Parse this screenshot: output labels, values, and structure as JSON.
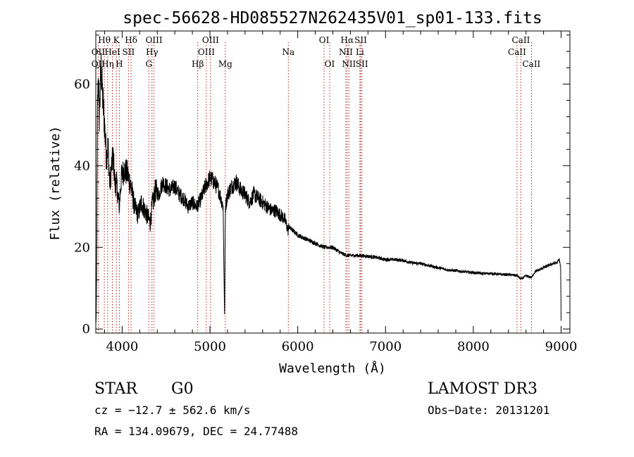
{
  "chart_data": {
    "type": "line",
    "title": "spec-56628-HD085527N262435V01_sp01-133.fits",
    "xlabel": "Wavelength (Å)",
    "ylabel": "Flux (relative)",
    "xlim": [
      3700,
      9100
    ],
    "ylim": [
      -1,
      73
    ],
    "x_ticks": [
      4000,
      5000,
      6000,
      7000,
      8000,
      9000
    ],
    "y_ticks": [
      0,
      20,
      40,
      60
    ],
    "spectrum_anchor_points": {
      "x": [
        3700,
        3705,
        3712,
        3720,
        3730,
        3740,
        3760,
        3780,
        3800,
        3820,
        3840,
        3860,
        3880,
        3900,
        3920,
        3935,
        3950,
        3968,
        3990,
        4020,
        4060,
        4100,
        4140,
        4180,
        4220,
        4260,
        4300,
        4320,
        4340,
        4380,
        4420,
        4460,
        4500,
        4550,
        4600,
        4650,
        4700,
        4750,
        4800,
        4850,
        4900,
        4950,
        5000,
        5050,
        5100,
        5150,
        5167,
        5172,
        5178,
        5200,
        5250,
        5300,
        5350,
        5400,
        5450,
        5500,
        5550,
        5600,
        5650,
        5700,
        5750,
        5800,
        5850,
        5893,
        5900,
        5950,
        6000,
        6100,
        6200,
        6300,
        6400,
        6500,
        6563,
        6600,
        6700,
        6800,
        6900,
        7000,
        7100,
        7200,
        7300,
        7400,
        7500,
        7600,
        7700,
        7800,
        7900,
        8000,
        8100,
        8200,
        8300,
        8400,
        8500,
        8542,
        8600,
        8662,
        8700,
        8800,
        8850,
        8900,
        8950,
        8980,
        8995,
        9000
      ],
      "y": [
        1,
        3,
        25,
        55,
        62,
        52,
        64,
        56,
        50,
        42,
        45,
        35,
        40,
        42,
        35,
        36,
        33,
        30,
        37,
        39,
        38,
        35,
        30,
        28,
        31,
        29,
        27,
        26,
        30,
        34,
        33,
        36,
        35,
        34,
        35,
        33,
        32,
        30,
        31,
        30,
        32,
        35,
        37,
        36,
        34,
        30,
        2,
        22,
        30,
        33,
        35,
        36,
        34,
        33,
        31,
        33,
        32,
        31,
        30,
        29,
        29,
        28,
        27,
        24,
        25,
        24,
        23,
        22,
        21,
        20,
        20,
        18.5,
        18,
        18,
        18,
        17.8,
        17.5,
        17,
        17,
        16.8,
        16.2,
        16,
        15.5,
        15,
        14.5,
        14.3,
        14,
        13.8,
        13.6,
        13.6,
        13.4,
        13.3,
        13.1,
        12.2,
        13,
        12.6,
        14,
        15,
        15.5,
        16,
        16.2,
        17,
        15,
        2
      ]
    },
    "line_markers": [
      {
        "label": "Hθ",
        "wavelength": 3797,
        "row": 0
      },
      {
        "label": "K",
        "wavelength": 3934,
        "row": 0
      },
      {
        "label": "Hδ",
        "wavelength": 4102,
        "row": 0
      },
      {
        "label": "OIII",
        "wavelength": 4363,
        "row": 0
      },
      {
        "label": "OIII",
        "wavelength": 5007,
        "row": 0
      },
      {
        "label": "OI",
        "wavelength": 6300,
        "row": 0
      },
      {
        "label": "Hα",
        "wavelength": 6563,
        "row": 0
      },
      {
        "label": "SII",
        "wavelength": 6717,
        "row": 0
      },
      {
        "label": "CaII",
        "wavelength": 8542,
        "row": 0
      },
      {
        "label": "OII",
        "wavelength": 3727,
        "row": 1
      },
      {
        "label": "HeI",
        "wavelength": 3889,
        "row": 1
      },
      {
        "label": "SII",
        "wavelength": 4072,
        "row": 1
      },
      {
        "label": "Hγ",
        "wavelength": 4340,
        "row": 1
      },
      {
        "label": "OIII",
        "wavelength": 4959,
        "row": 1
      },
      {
        "label": "Na",
        "wavelength": 5893,
        "row": 1
      },
      {
        "label": "NII",
        "wavelength": 6548,
        "row": 1
      },
      {
        "label": "Li",
        "wavelength": 6708,
        "row": 1
      },
      {
        "label": "CaII",
        "wavelength": 8498,
        "row": 1
      },
      {
        "label": "OII",
        "wavelength": 3727,
        "row": 2
      },
      {
        "label": "Hη",
        "wavelength": 3835,
        "row": 2
      },
      {
        "label": "H",
        "wavelength": 3968,
        "row": 2
      },
      {
        "label": "G",
        "wavelength": 4304,
        "row": 2
      },
      {
        "label": "Hβ",
        "wavelength": 4861,
        "row": 2
      },
      {
        "label": "Mg",
        "wavelength": 5175,
        "row": 2
      },
      {
        "label": "OI",
        "wavelength": 6364,
        "row": 2
      },
      {
        "label": "NII",
        "wavelength": 6583,
        "row": 2
      },
      {
        "label": "SII",
        "wavelength": 6731,
        "row": 2
      },
      {
        "label": "CaII",
        "wavelength": 8662,
        "row": 2
      }
    ]
  },
  "info": {
    "object_class": "STAR",
    "subclass": "G0",
    "survey": "LAMOST DR3",
    "cz": "cz = −12.7 ± 562.6 km/s",
    "obs_date": "Obs−Date: 20131201",
    "coords": "RA = 134.09679, DEC =  24.77488"
  },
  "colors": {
    "spectrum": "#000000",
    "marker": "#b22222",
    "axis": "#000000"
  }
}
